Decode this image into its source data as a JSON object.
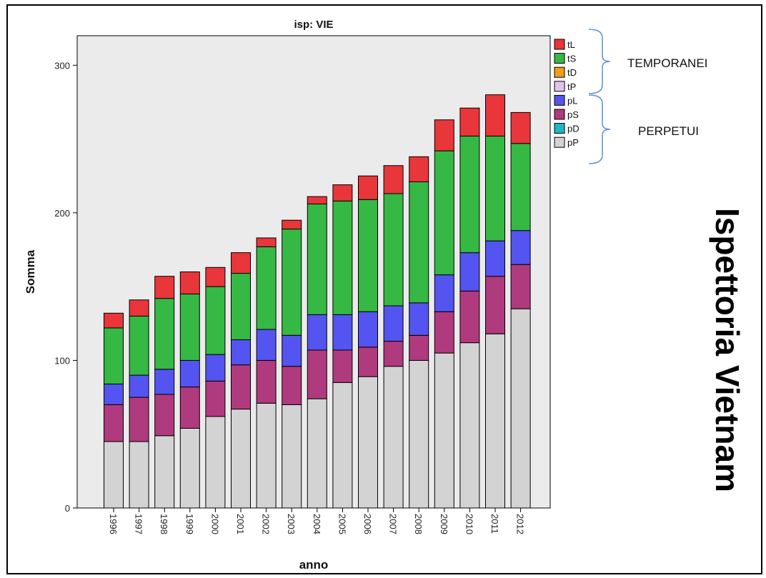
{
  "chart_data": {
    "type": "bar",
    "stacked": true,
    "title": "isp: VIE",
    "xlabel": "anno",
    "ylabel": "Somma",
    "ylim": [
      0,
      320
    ],
    "yticks": [
      0,
      100,
      200,
      300
    ],
    "grid": false,
    "legend_placement": "right",
    "categories": [
      "1996",
      "1997",
      "1998",
      "1999",
      "2000",
      "2001",
      "2002",
      "2003",
      "2004",
      "2005",
      "2006",
      "2007",
      "2008",
      "2009",
      "2010",
      "2011",
      "2012"
    ],
    "series": [
      {
        "name": "pP",
        "color": "#d3d3d3",
        "values": [
          45,
          45,
          49,
          54,
          62,
          67,
          71,
          70,
          74,
          85,
          89,
          96,
          100,
          105,
          112,
          118,
          135
        ]
      },
      {
        "name": "pD",
        "color": "#1fb7c4",
        "values": [
          0,
          0,
          0,
          0,
          0,
          0,
          0,
          0,
          0,
          0,
          0,
          0,
          0,
          0,
          0,
          0,
          0
        ]
      },
      {
        "name": "pS",
        "color": "#b03a7e",
        "values": [
          25,
          30,
          28,
          28,
          24,
          30,
          29,
          26,
          33,
          22,
          20,
          17,
          17,
          28,
          35,
          39,
          30
        ]
      },
      {
        "name": "pL",
        "color": "#5454f0",
        "values": [
          14,
          15,
          17,
          18,
          18,
          17,
          21,
          21,
          24,
          24,
          24,
          24,
          22,
          25,
          26,
          24,
          23
        ]
      },
      {
        "name": "tP",
        "color": "#e2c3ee",
        "values": [
          0,
          0,
          0,
          0,
          0,
          0,
          0,
          0,
          0,
          0,
          0,
          0,
          0,
          0,
          0,
          0,
          0
        ]
      },
      {
        "name": "tD",
        "color": "#f59b1e",
        "values": [
          0,
          0,
          0,
          0,
          0,
          0,
          0,
          0,
          0,
          0,
          0,
          0,
          0,
          0,
          0,
          0,
          0
        ]
      },
      {
        "name": "tS",
        "color": "#35b844",
        "values": [
          38,
          40,
          48,
          45,
          46,
          45,
          56,
          72,
          75,
          77,
          76,
          76,
          82,
          84,
          79,
          71,
          59
        ]
      },
      {
        "name": "tL",
        "color": "#e8363a",
        "values": [
          10,
          11,
          15,
          15,
          13,
          14,
          6,
          6,
          5,
          11,
          16,
          19,
          17,
          21,
          19,
          28,
          21
        ]
      }
    ],
    "legend_groups": [
      {
        "label": "TEMPORANEI",
        "series": [
          "tL",
          "tS",
          "tD",
          "tP"
        ]
      },
      {
        "label": "PERPETUI",
        "series": [
          "pL",
          "pS",
          "pD",
          "pP"
        ]
      }
    ]
  },
  "side_title": "Ispettoria Vietnam",
  "colors": {
    "plot_background": "#ebebeb",
    "bracket": "#5b8fd6"
  }
}
